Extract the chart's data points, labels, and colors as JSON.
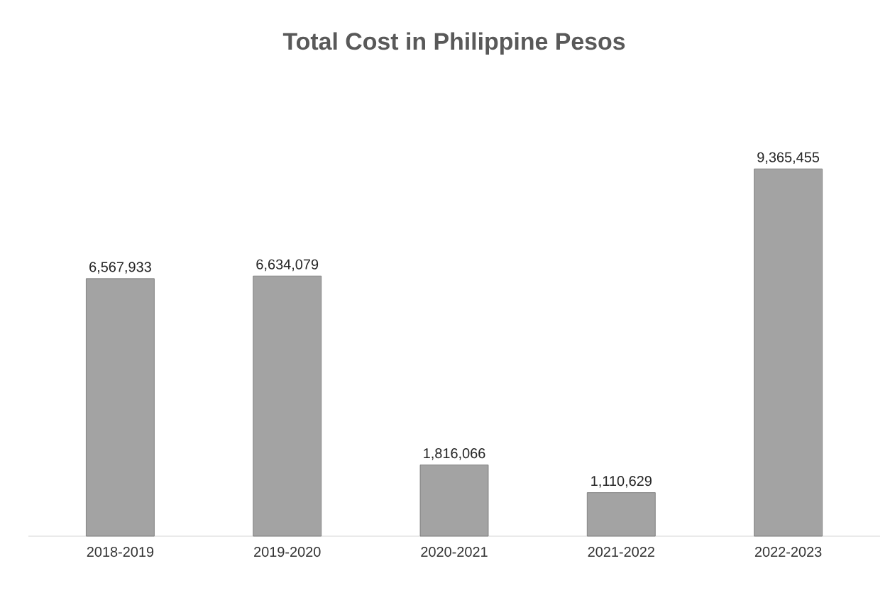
{
  "chart_data": {
    "type": "bar",
    "title": "Total Cost in Philippine Pesos",
    "categories": [
      "2018-2019",
      "2019-2020",
      "2020-2021",
      "2021-2022",
      "2022-2023"
    ],
    "values": [
      6567933,
      6634079,
      1816066,
      1110629,
      9365455
    ],
    "value_labels": [
      "6,567,933",
      "6,634,079",
      "1,816,066",
      "1,110,629",
      "9,365,455"
    ],
    "color": "#a3a3a3"
  }
}
